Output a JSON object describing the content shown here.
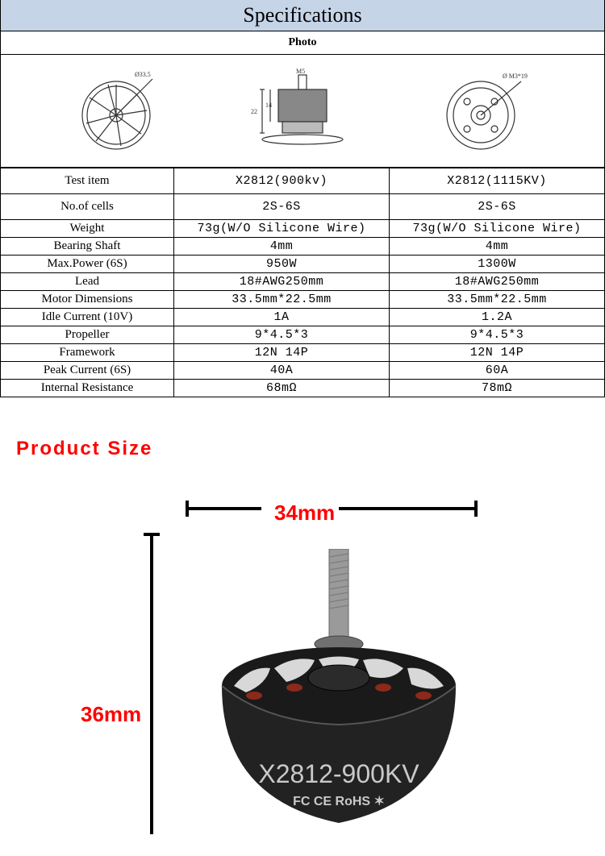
{
  "header": {
    "title": "Specifications",
    "photo_label": "Photo"
  },
  "table": {
    "col_label_width": 215,
    "rows": [
      {
        "label": "Test item",
        "v1": "X2812(900kv)",
        "v2": "X2812(1115KV)",
        "tall": true,
        "mono": true
      },
      {
        "label": "No.of cells",
        "v1": "2S-6S",
        "v2": "2S-6S",
        "tall": true,
        "mono": true
      },
      {
        "label": "Weight",
        "v1": "73g(W/O Silicone Wire)",
        "v2": "73g(W/O Silicone Wire)",
        "mono": true
      },
      {
        "label": "Bearing Shaft",
        "v1": "4mm",
        "v2": "4mm",
        "mono": true
      },
      {
        "label": "Max.Power (6S)",
        "v1": "950W",
        "v2": "1300W",
        "mono": true
      },
      {
        "label": "Lead",
        "v1": "18#AWG250mm",
        "v2": "18#AWG250mm",
        "mono": true
      },
      {
        "label": "Motor Dimensions",
        "v1": "33.5mm*22.5mm",
        "v2": "33.5mm*22.5mm",
        "mono": true
      },
      {
        "label": "Idle Current (10V)",
        "v1": "1A",
        "v2": "1.2A",
        "mono": true
      },
      {
        "label": "Propeller",
        "v1": "9*4.5*3",
        "v2": "9*4.5*3",
        "mono": true
      },
      {
        "label": "Framework",
        "v1": "12N 14P",
        "v2": "12N 14P",
        "mono": true
      },
      {
        "label": "Peak Current (6S)",
        "v1": "40A",
        "v2": "60A",
        "mono": true
      },
      {
        "label": "Internal Resistance",
        "v1": "68mΩ",
        "v2": "78mΩ",
        "mono": true
      }
    ]
  },
  "product_size": {
    "title": "Product Size",
    "width_label": "34mm",
    "height_label": "36mm",
    "motor_label": "X2812-900KV",
    "cert_label": "FC CE RoHS"
  },
  "colors": {
    "header_bg": "#c6d4e8",
    "accent": "#ff0000",
    "border": "#000000",
    "bg": "#ffffff"
  }
}
